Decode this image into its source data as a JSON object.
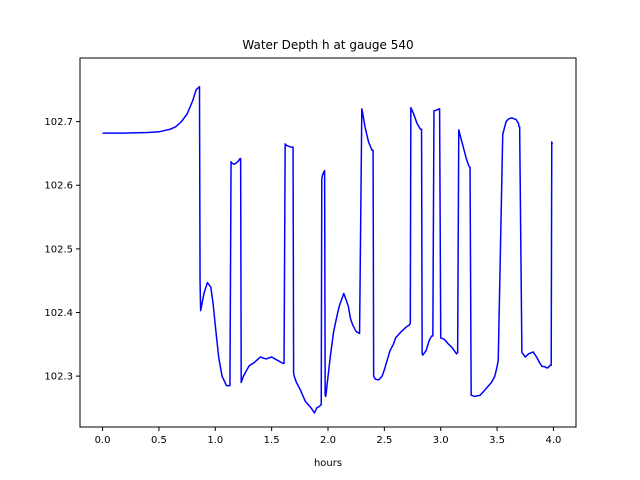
{
  "chart_data": {
    "type": "line",
    "title": "Water Depth h at gauge 540",
    "xlabel": "hours",
    "ylabel": "",
    "xlim": [
      -0.2,
      4.2
    ],
    "ylim": [
      102.22,
      102.8
    ],
    "xticks": [
      0.0,
      0.5,
      1.0,
      1.5,
      2.0,
      2.5,
      3.0,
      3.5,
      4.0
    ],
    "xtick_labels": [
      "0.0",
      "0.5",
      "1.0",
      "1.5",
      "2.0",
      "2.5",
      "3.0",
      "3.5",
      "4.0"
    ],
    "yticks": [
      102.3,
      102.4,
      102.5,
      102.6,
      102.7
    ],
    "ytick_labels": [
      "102.3",
      "102.4",
      "102.5",
      "102.6",
      "102.7"
    ],
    "grid": false,
    "series": [
      {
        "color": "#0000ff",
        "x": [
          0.0,
          0.2,
          0.4,
          0.5,
          0.6,
          0.65,
          0.7,
          0.75,
          0.8,
          0.83,
          0.86,
          0.865,
          0.87,
          0.9,
          0.93,
          0.96,
          0.98,
          1.0,
          1.03,
          1.06,
          1.1,
          1.13,
          1.14,
          1.145,
          1.17,
          1.2,
          1.22,
          1.225,
          1.23,
          1.25,
          1.3,
          1.35,
          1.4,
          1.45,
          1.5,
          1.55,
          1.6,
          1.61,
          1.62,
          1.63,
          1.64,
          1.67,
          1.69,
          1.695,
          1.7,
          1.72,
          1.75,
          1.8,
          1.85,
          1.88,
          1.9,
          1.92,
          1.94,
          1.945,
          1.95,
          1.96,
          1.97,
          1.975,
          1.98,
          2.02,
          2.05,
          2.08,
          2.1,
          2.12,
          2.14,
          2.16,
          2.18,
          2.2,
          2.22,
          2.25,
          2.28,
          2.3,
          2.305,
          2.33,
          2.36,
          2.39,
          2.4,
          2.405,
          2.42,
          2.45,
          2.48,
          2.5,
          2.55,
          2.58,
          2.6,
          2.65,
          2.7,
          2.72,
          2.73,
          2.735,
          2.76,
          2.79,
          2.82,
          2.83,
          2.835,
          2.84,
          2.87,
          2.9,
          2.92,
          2.93,
          2.94,
          2.96,
          2.985,
          2.99,
          3.0,
          3.03,
          3.07,
          3.1,
          3.14,
          3.15,
          3.16,
          3.17,
          3.2,
          3.23,
          3.25,
          3.26,
          3.27,
          3.3,
          3.35,
          3.4,
          3.45,
          3.48,
          3.5,
          3.51,
          3.55,
          3.58,
          3.6,
          3.63,
          3.67,
          3.69,
          3.695,
          3.7,
          3.72,
          3.73,
          3.75,
          3.78,
          3.82,
          3.85,
          3.88,
          3.9,
          3.92,
          3.94,
          3.95,
          3.97,
          3.98,
          3.985,
          3.99
        ],
        "y": [
          102.682,
          102.682,
          102.683,
          102.684,
          102.688,
          102.692,
          102.7,
          102.712,
          102.733,
          102.75,
          102.755,
          102.45,
          102.403,
          102.43,
          102.447,
          102.44,
          102.415,
          102.38,
          102.33,
          102.3,
          102.285,
          102.285,
          102.637,
          102.635,
          102.633,
          102.637,
          102.642,
          102.642,
          102.29,
          102.3,
          102.316,
          102.322,
          102.33,
          102.327,
          102.33,
          102.325,
          102.32,
          102.32,
          102.665,
          102.663,
          102.662,
          102.66,
          102.66,
          102.305,
          102.3,
          102.29,
          102.28,
          102.26,
          102.25,
          102.242,
          102.25,
          102.252,
          102.255,
          102.61,
          102.615,
          102.62,
          102.623,
          102.27,
          102.268,
          102.33,
          102.37,
          102.395,
          102.41,
          102.42,
          102.43,
          102.42,
          102.41,
          102.39,
          102.38,
          102.37,
          102.367,
          102.72,
          102.716,
          102.69,
          102.668,
          102.655,
          102.655,
          102.3,
          102.295,
          102.294,
          102.3,
          102.31,
          102.34,
          102.35,
          102.36,
          102.37,
          102.378,
          102.38,
          102.383,
          102.722,
          102.712,
          102.697,
          102.688,
          102.688,
          102.336,
          102.333,
          102.34,
          102.357,
          102.363,
          102.363,
          102.717,
          102.718,
          102.72,
          102.72,
          102.36,
          102.358,
          102.35,
          102.345,
          102.335,
          102.337,
          102.687,
          102.68,
          102.66,
          102.64,
          102.63,
          102.628,
          102.27,
          102.268,
          102.27,
          102.28,
          102.29,
          102.3,
          102.315,
          102.325,
          102.68,
          102.7,
          102.704,
          102.706,
          102.703,
          102.697,
          102.692,
          102.692,
          102.337,
          102.335,
          102.33,
          102.335,
          102.338,
          102.33,
          102.32,
          102.315,
          102.315,
          102.313,
          102.313,
          102.317,
          102.317,
          102.668,
          102.665
        ]
      }
    ]
  }
}
